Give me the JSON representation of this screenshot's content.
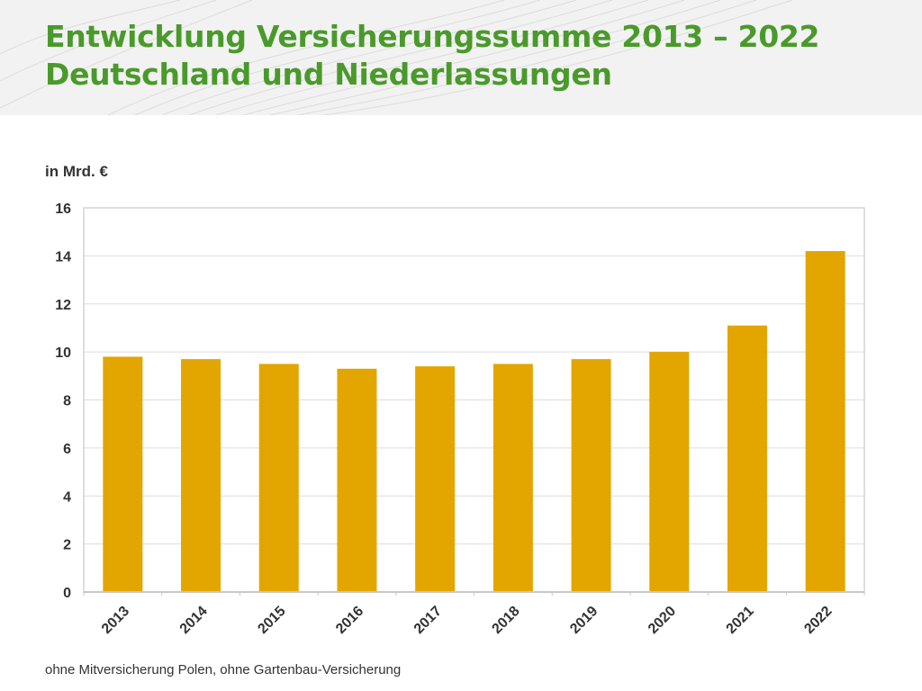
{
  "header": {
    "title_line1": "Entwicklung Versicherungssumme 2013 – 2022",
    "title_line2": "Deutschland und Niederlassungen"
  },
  "colors": {
    "title": "#4a9a2b",
    "bar": "#e3a500",
    "grid": "#dddddd",
    "text": "#333333"
  },
  "footnote": "ohne Mitversicherung Polen, ohne Gartenbau-Versicherung",
  "chart_data": {
    "type": "bar",
    "title": "Entwicklung Versicherungssumme 2013 – 2022 Deutschland und Niederlassungen",
    "ylabel": "in Mrd. €",
    "xlabel": "",
    "categories": [
      "2013",
      "2014",
      "2015",
      "2016",
      "2017",
      "2018",
      "2019",
      "2020",
      "2021",
      "2022"
    ],
    "values": [
      9.8,
      9.7,
      9.5,
      9.3,
      9.4,
      9.5,
      9.7,
      10.0,
      11.1,
      14.2
    ],
    "ylim": [
      0,
      16
    ],
    "yticks": [
      0,
      2,
      4,
      6,
      8,
      10,
      12,
      14,
      16
    ],
    "grid": true,
    "legend": "none"
  }
}
